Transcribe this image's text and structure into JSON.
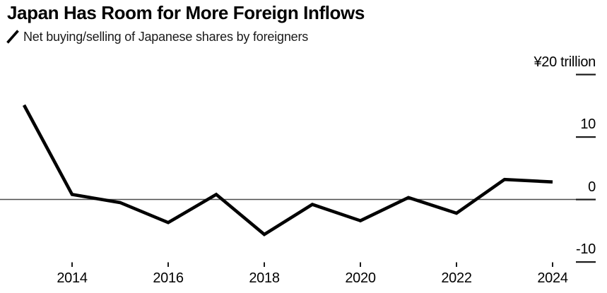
{
  "header": {
    "title": "Japan Has Room for More Foreign Inflows",
    "legend_label": "Net buying/selling of Japanese shares by foreigners"
  },
  "colors": {
    "line": "#000000",
    "zero_line": "#4d4d4d",
    "tick": "#1a1a1a",
    "text": "#000000",
    "background": "#ffffff"
  },
  "chart_data": {
    "type": "line",
    "title": "Japan Has Room for More Foreign Inflows",
    "series": [
      {
        "name": "Net buying/selling of Japanese shares by foreigners",
        "values": [
          15.1,
          0.8,
          -0.5,
          -3.7,
          0.8,
          -5.6,
          -0.8,
          -3.4,
          0.3,
          -2.2,
          3.2,
          2.8
        ]
      }
    ],
    "x": [
      2013,
      2014,
      2015,
      2016,
      2017,
      2018,
      2019,
      2020,
      2021,
      2022,
      2023,
      2024
    ],
    "xlabel": "",
    "ylabel": "¥ trillion",
    "unit": "¥ trillion",
    "ylim": [
      -13,
      22
    ],
    "y_ticks": [
      {
        "label": "¥20 trillion",
        "value": 20
      },
      {
        "label": "10",
        "value": 10
      },
      {
        "label": "0",
        "value": 0
      },
      {
        "label": "-10",
        "value": -10
      }
    ],
    "x_ticks": [
      {
        "label": "2014",
        "value": 2014
      },
      {
        "label": "2016",
        "value": 2016
      },
      {
        "label": "2018",
        "value": 2018
      },
      {
        "label": "2020",
        "value": 2020
      },
      {
        "label": "2022",
        "value": 2022
      },
      {
        "label": "2024",
        "value": 2024
      }
    ],
    "grid": false,
    "zero_line": true,
    "legend_position": "top-left"
  }
}
